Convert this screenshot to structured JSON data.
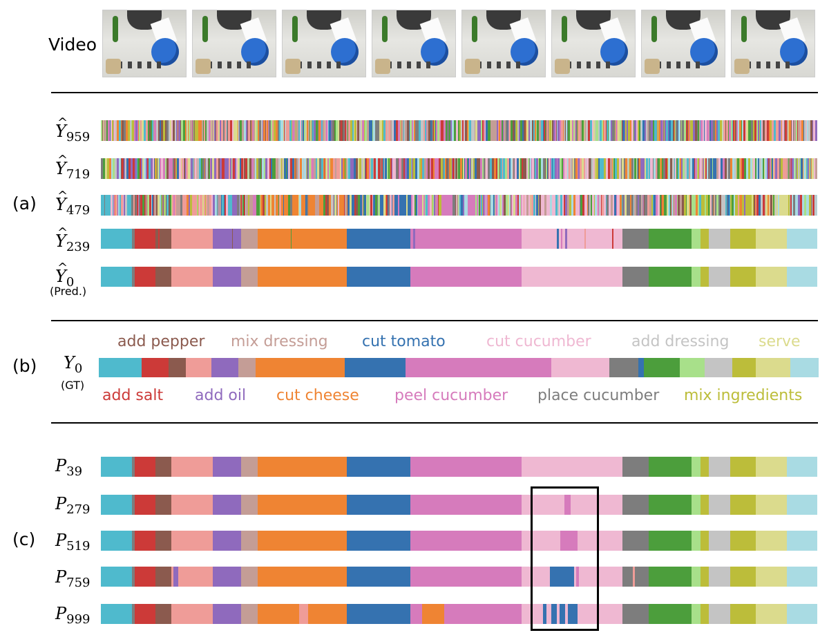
{
  "labels": {
    "video": "Video",
    "section_a": "(a)",
    "section_b": "(b)",
    "section_c": "(c)",
    "pred": "(Pred.)",
    "gt": "(GT)"
  },
  "colors": {
    "start": "#4fbacd",
    "add_pepper": "#8b5a4e",
    "add_salt": "#cc3a38",
    "tomato_pink": "#ef9c98",
    "add_oil": "#8f6abd",
    "mix_dressing": "#c49d96",
    "cut_cheese": "#ef8433",
    "cut_tomato": "#3572b0",
    "peel_cucumber": "#d67bbc",
    "cut_cucumber": "#efb8d2",
    "place_cucumber": "#7d7d7d",
    "add_dressing": "#c4c4c4",
    "serve": "#dbdb8d",
    "mix_ingredients": "#bcbd3a",
    "green": "#4c9e3c",
    "light_green": "#a8e08a",
    "end": "#a9dbe3"
  },
  "rows": {
    "y959": {
      "symbol": "Y",
      "sub": "959"
    },
    "y719": {
      "symbol": "Y",
      "sub": "719"
    },
    "y479": {
      "symbol": "Y",
      "sub": "479"
    },
    "y239": {
      "symbol": "Y",
      "sub": "239"
    },
    "y0": {
      "symbol": "Y",
      "sub": "0"
    },
    "gt": {
      "symbol": "Y",
      "sub": "0"
    },
    "p39": {
      "symbol": "P",
      "sub": "39"
    },
    "p279": {
      "symbol": "P",
      "sub": "279"
    },
    "p519": {
      "symbol": "P",
      "sub": "519"
    },
    "p759": {
      "symbol": "P",
      "sub": "759"
    },
    "p999": {
      "symbol": "P",
      "sub": "999"
    }
  },
  "legend_top": [
    "add pepper",
    "mix dressing",
    "cut tomato",
    "cut cucumber",
    "add dressing",
    "serve"
  ],
  "legend_bottom": [
    "add salt",
    "add oil",
    "cut cheese",
    "peel cucumber",
    "place cucumber",
    "mix ingredients"
  ]
}
